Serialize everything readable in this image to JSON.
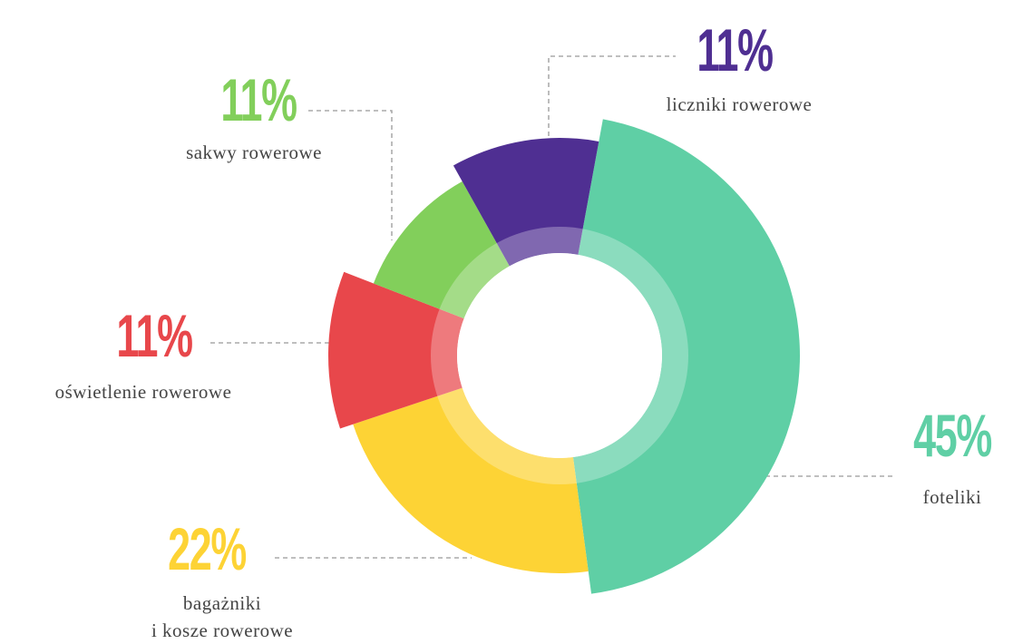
{
  "chart_data": {
    "type": "donut",
    "categories": [
      "foteliki",
      "bagażniki\ni kosze rowerowe",
      "oświetlenie rowerowe",
      "sakwy rowerowe",
      "liczniki rowerowe"
    ],
    "values": [
      45,
      22,
      11,
      11,
      11
    ],
    "value_labels": [
      "45%",
      "22%",
      "11%",
      "11%",
      "11%"
    ],
    "colors": [
      "#5fcfa5",
      "#fdd335",
      "#e8474b",
      "#82cf5b",
      "#4f2f92"
    ]
  }
}
